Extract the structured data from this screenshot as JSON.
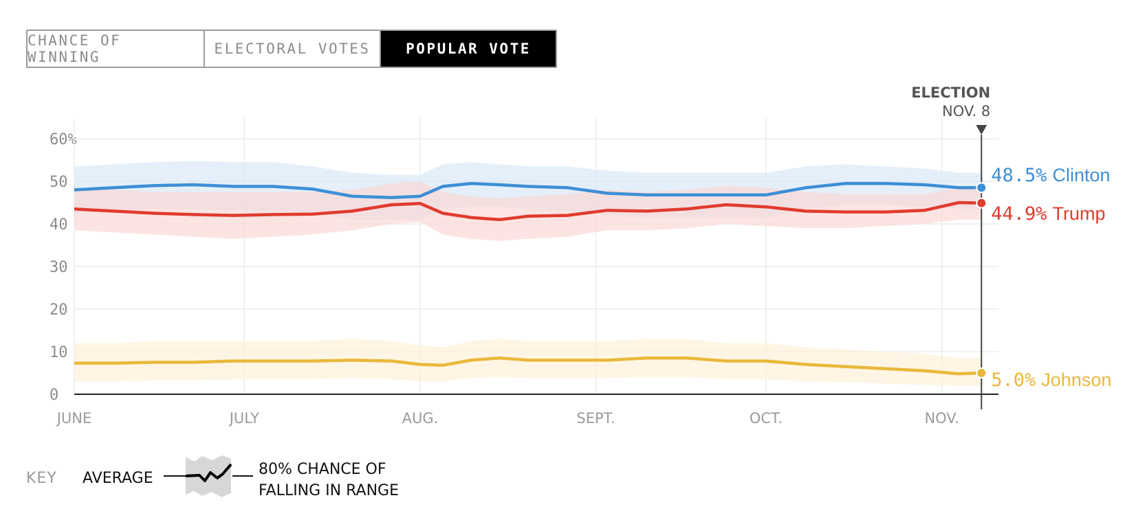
{
  "tabs": [
    {
      "label": "CHANCE OF WINNING",
      "active": false
    },
    {
      "label": "ELECTORAL VOTES",
      "active": false
    },
    {
      "label": "POPULAR VOTE",
      "active": true
    }
  ],
  "marker": {
    "title": "ELECTION",
    "date": "NOV. 8"
  },
  "key": {
    "label": "KEY",
    "average": "AVERAGE",
    "range_line1": "80% CHANCE OF",
    "range_line2": "FALLING IN RANGE"
  },
  "chart_data": {
    "type": "line",
    "title": "",
    "xlabel": "",
    "ylabel": "",
    "ylim": [
      0,
      60
    ],
    "yticks": [
      0,
      10,
      20,
      30,
      40,
      50,
      60
    ],
    "ytick_labels": [
      "0",
      "10",
      "20",
      "30",
      "40",
      "50",
      "60%"
    ],
    "xlim": [
      "2016-06-01",
      "2016-11-11"
    ],
    "x_ticks": [
      {
        "date": "2016-06-01",
        "label": "JUNE"
      },
      {
        "date": "2016-07-01",
        "label": "JULY"
      },
      {
        "date": "2016-08-01",
        "label": "AUG."
      },
      {
        "date": "2016-09-01",
        "label": "SEPT."
      },
      {
        "date": "2016-10-01",
        "label": "OCT."
      },
      {
        "date": "2016-11-01",
        "label": "NOV."
      }
    ],
    "grid": true,
    "end_date": "2016-11-08",
    "x": [
      "2016-06-01",
      "2016-06-08",
      "2016-06-15",
      "2016-06-22",
      "2016-06-29",
      "2016-07-06",
      "2016-07-13",
      "2016-07-20",
      "2016-07-27",
      "2016-08-01",
      "2016-08-05",
      "2016-08-10",
      "2016-08-15",
      "2016-08-20",
      "2016-08-27",
      "2016-09-03",
      "2016-09-10",
      "2016-09-17",
      "2016-09-24",
      "2016-10-01",
      "2016-10-08",
      "2016-10-15",
      "2016-10-22",
      "2016-10-29",
      "2016-11-04",
      "2016-11-08"
    ],
    "series": [
      {
        "name": "Clinton",
        "color": "#3d8fd6",
        "band_color": "#d9e8f7",
        "end_value_label": "48.5%",
        "values": [
          48.0,
          48.5,
          49.0,
          49.2,
          48.8,
          48.8,
          48.2,
          46.5,
          46.2,
          46.5,
          48.8,
          49.5,
          49.2,
          48.8,
          48.5,
          47.2,
          46.8,
          46.8,
          46.8,
          46.8,
          48.5,
          49.5,
          49.5,
          49.2,
          48.5,
          48.5
        ],
        "lower": [
          42.5,
          43.0,
          43.5,
          43.5,
          43.0,
          43.0,
          42.5,
          41.0,
          41.0,
          41.0,
          43.5,
          44.0,
          44.0,
          43.5,
          43.0,
          42.0,
          41.5,
          41.5,
          41.5,
          41.5,
          43.5,
          44.5,
          44.5,
          44.0,
          43.5,
          43.5
        ],
        "upper": [
          53.5,
          54.0,
          54.5,
          54.8,
          54.5,
          54.5,
          53.5,
          52.0,
          51.5,
          51.5,
          54.0,
          54.5,
          54.0,
          53.5,
          53.5,
          52.5,
          52.0,
          52.0,
          52.0,
          52.0,
          53.5,
          54.0,
          53.5,
          53.0,
          52.0,
          52.0
        ]
      },
      {
        "name": "Trump",
        "color": "#e03b2e",
        "band_color": "#fbd9d5",
        "end_value_label": "44.9%",
        "values": [
          43.5,
          43.0,
          42.5,
          42.2,
          42.0,
          42.2,
          42.3,
          43.0,
          44.5,
          44.8,
          42.5,
          41.5,
          41.0,
          41.8,
          42.0,
          43.2,
          43.0,
          43.5,
          44.5,
          44.0,
          43.0,
          42.8,
          42.8,
          43.2,
          45.0,
          44.9
        ],
        "lower": [
          38.5,
          38.0,
          37.5,
          37.0,
          36.5,
          37.0,
          37.5,
          38.5,
          40.0,
          40.5,
          37.5,
          36.5,
          36.0,
          36.5,
          37.0,
          38.5,
          38.5,
          39.0,
          40.0,
          39.5,
          39.0,
          39.0,
          39.5,
          40.0,
          41.0,
          41.0
        ],
        "upper": [
          48.5,
          48.0,
          47.5,
          47.5,
          47.5,
          47.5,
          47.5,
          48.0,
          49.5,
          50.0,
          47.5,
          46.5,
          46.0,
          46.5,
          47.0,
          48.0,
          47.5,
          48.0,
          49.0,
          48.5,
          47.5,
          47.0,
          47.0,
          47.0,
          48.5,
          48.5
        ]
      },
      {
        "name": "Johnson",
        "color": "#e9b83a",
        "band_color": "#fdf1d8",
        "end_value_label": "5.0%",
        "values": [
          7.3,
          7.3,
          7.5,
          7.5,
          7.8,
          7.8,
          7.8,
          8.0,
          7.8,
          7.0,
          6.8,
          8.0,
          8.5,
          8.0,
          8.0,
          8.0,
          8.5,
          8.5,
          7.8,
          7.8,
          7.0,
          6.5,
          6.0,
          5.5,
          4.8,
          5.0
        ],
        "lower": [
          3.0,
          3.0,
          3.2,
          3.2,
          3.5,
          3.5,
          3.5,
          3.8,
          3.5,
          3.0,
          3.0,
          3.8,
          4.0,
          3.8,
          3.8,
          3.8,
          4.0,
          4.0,
          3.5,
          3.5,
          3.0,
          2.8,
          2.5,
          2.2,
          2.0,
          2.0
        ],
        "upper": [
          12.0,
          12.0,
          12.5,
          12.5,
          12.5,
          12.5,
          12.5,
          13.0,
          12.5,
          11.5,
          11.0,
          12.5,
          13.0,
          12.5,
          12.5,
          12.5,
          13.0,
          13.0,
          12.0,
          12.0,
          11.0,
          10.5,
          10.0,
          9.5,
          8.5,
          8.5
        ]
      }
    ]
  }
}
